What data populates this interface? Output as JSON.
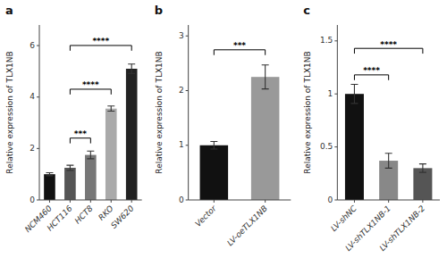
{
  "chart_data": [
    {
      "type": "bar",
      "title": "a",
      "categories": [
        "NCM460",
        "HCT116",
        "HCT8",
        "RKO",
        "SW620"
      ],
      "values": [
        1.0,
        1.25,
        1.75,
        3.55,
        5.1
      ],
      "errors": [
        0.06,
        0.1,
        0.15,
        0.1,
        0.18
      ],
      "colors": [
        "#111111",
        "#555555",
        "#777777",
        "#aaaaaa",
        "#222222"
      ],
      "ylabel": "Relative expression of TLX1NB",
      "ylim": [
        0,
        6.8
      ],
      "yticks": [
        0,
        2,
        4,
        6
      ],
      "grid": false,
      "annotations": [
        {
          "from": "HCT116",
          "to": "HCT8",
          "y": 2.2,
          "label": "***"
        },
        {
          "from": "HCT116",
          "to": "RKO",
          "y": 4.1,
          "label": "****"
        },
        {
          "from": "HCT116",
          "to": "SW620",
          "y": 5.8,
          "label": "****"
        }
      ]
    },
    {
      "type": "bar",
      "title": "b",
      "categories": [
        "Vector",
        "LV-oeTLX1NB"
      ],
      "values": [
        1.0,
        2.25
      ],
      "errors": [
        0.07,
        0.22
      ],
      "colors": [
        "#111111",
        "#999999"
      ],
      "ylabel": "Relative expression of TLX1NB",
      "ylim": [
        0,
        3.2
      ],
      "yticks": [
        0,
        1,
        2,
        3
      ],
      "grid": false,
      "annotations": [
        {
          "from": "Vector",
          "to": "LV-oeTLX1NB",
          "y": 2.65,
          "label": "***"
        }
      ]
    },
    {
      "type": "bar",
      "title": "c",
      "categories": [
        "LV-shNC",
        "LV-shTLX1NB-1",
        "LV-shTLX1NB-2"
      ],
      "values": [
        1.0,
        0.37,
        0.3
      ],
      "errors": [
        0.09,
        0.07,
        0.04
      ],
      "colors": [
        "#111111",
        "#888888",
        "#555555"
      ],
      "ylabel": "Relative expression of TLX1NB",
      "ylim": [
        0,
        1.65
      ],
      "yticks": [
        0.0,
        0.5,
        1.0,
        1.5
      ],
      "grid": false,
      "annotations": [
        {
          "from": "LV-shNC",
          "to": "LV-shTLX1NB-1",
          "y": 1.13,
          "label": "****"
        },
        {
          "from": "LV-shNC",
          "to": "LV-shTLX1NB-2",
          "y": 1.38,
          "label": "****"
        }
      ]
    }
  ]
}
